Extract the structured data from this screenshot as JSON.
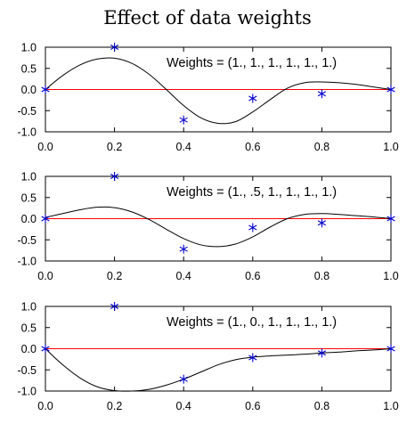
{
  "figure": {
    "title": "Effect of data weights"
  },
  "chart_data": [
    {
      "type": "line",
      "annotation": "Weights = (1., 1., 1., 1., 1., 1.)",
      "xlim": [
        0.0,
        1.0
      ],
      "ylim": [
        -1.0,
        1.0
      ],
      "x_ticks": [
        "0.0",
        "0.2",
        "0.4",
        "0.6",
        "0.8",
        "1.0"
      ],
      "y_ticks": [
        "1.0",
        "0.5",
        "0.0",
        "-0.5",
        "-1.0"
      ],
      "grid": false,
      "reference_line": {
        "y": 0.0,
        "color": "#ff0000"
      },
      "points": {
        "marker": "asterisk",
        "color": "#0000cc",
        "x": [
          0.0,
          0.2,
          0.4,
          0.6,
          0.8,
          1.0
        ],
        "y": [
          0.0,
          1.0,
          -0.72,
          -0.21,
          -0.1,
          0.0
        ]
      },
      "curve": {
        "color": "#000000",
        "x": [
          0.0,
          0.05,
          0.1,
          0.15,
          0.2,
          0.25,
          0.3,
          0.35,
          0.4,
          0.45,
          0.5,
          0.55,
          0.6,
          0.65,
          0.7,
          0.75,
          0.8,
          0.85,
          0.9,
          0.95,
          1.0
        ],
        "y": [
          0.0,
          0.33,
          0.58,
          0.72,
          0.74,
          0.62,
          0.36,
          0.0,
          -0.38,
          -0.67,
          -0.8,
          -0.76,
          -0.53,
          -0.24,
          0.03,
          0.16,
          0.18,
          0.16,
          0.12,
          0.06,
          0.0
        ]
      }
    },
    {
      "type": "line",
      "annotation": "Weights = (1., .5, 1., 1., 1., 1.)",
      "xlim": [
        0.0,
        1.0
      ],
      "ylim": [
        -1.0,
        1.0
      ],
      "x_ticks": [
        "0.0",
        "0.2",
        "0.4",
        "0.6",
        "0.8",
        "1.0"
      ],
      "y_ticks": [
        "1.0",
        "0.5",
        "0.0",
        "-0.5",
        "-1.0"
      ],
      "grid": false,
      "reference_line": {
        "y": 0.0,
        "color": "#ff0000"
      },
      "points": {
        "marker": "asterisk",
        "color": "#0000cc",
        "x": [
          0.0,
          0.2,
          0.4,
          0.6,
          0.8,
          1.0
        ],
        "y": [
          0.0,
          1.0,
          -0.72,
          -0.21,
          -0.1,
          0.0
        ]
      },
      "curve": {
        "color": "#000000",
        "x": [
          0.0,
          0.05,
          0.1,
          0.15,
          0.2,
          0.25,
          0.3,
          0.35,
          0.4,
          0.45,
          0.5,
          0.55,
          0.6,
          0.65,
          0.7,
          0.75,
          0.8,
          0.85,
          0.9,
          0.95,
          1.0
        ],
        "y": [
          0.03,
          0.12,
          0.21,
          0.27,
          0.26,
          0.16,
          -0.02,
          -0.25,
          -0.47,
          -0.62,
          -0.66,
          -0.6,
          -0.43,
          -0.2,
          0.0,
          0.1,
          0.12,
          0.1,
          0.07,
          0.04,
          0.0
        ]
      }
    },
    {
      "type": "line",
      "annotation": "Weights = (1., 0., 1., 1., 1., 1.)",
      "xlim": [
        0.0,
        1.0
      ],
      "ylim": [
        -1.0,
        1.0
      ],
      "x_ticks": [
        "0.0",
        "0.2",
        "0.4",
        "0.6",
        "0.8",
        "1.0"
      ],
      "y_ticks": [
        "1.0",
        "0.5",
        "0.0",
        "-0.5",
        "-1.0"
      ],
      "grid": false,
      "reference_line": {
        "y": 0.0,
        "color": "#ff0000"
      },
      "points": {
        "marker": "asterisk",
        "color": "#0000cc",
        "x": [
          0.0,
          0.2,
          0.4,
          0.6,
          0.8,
          1.0
        ],
        "y": [
          0.0,
          1.0,
          -0.72,
          -0.21,
          -0.1,
          0.0
        ]
      },
      "curve": {
        "color": "#000000",
        "x": [
          0.0,
          0.05,
          0.1,
          0.15,
          0.2,
          0.25,
          0.3,
          0.35,
          0.4,
          0.45,
          0.5,
          0.55,
          0.6,
          0.65,
          0.7,
          0.75,
          0.8,
          0.85,
          0.9,
          0.95,
          1.0
        ],
        "y": [
          0.0,
          -0.38,
          -0.69,
          -0.9,
          -0.99,
          -1.0,
          -0.96,
          -0.86,
          -0.72,
          -0.55,
          -0.38,
          -0.26,
          -0.2,
          -0.17,
          -0.15,
          -0.13,
          -0.1,
          -0.08,
          -0.05,
          -0.03,
          0.0
        ]
      }
    }
  ]
}
